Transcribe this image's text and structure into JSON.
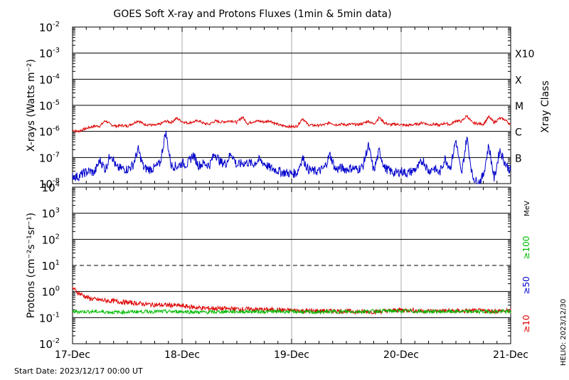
{
  "title": "GOES Soft X-ray and Protons Fluxes   (1min & 5min data)",
  "start_date_label": "Start Date: 2023/12/17 00:00 UT",
  "helio_stamp": "HELIO: 2023/12/30",
  "colors": {
    "red": "#dd0000",
    "blue": "#0000cc",
    "green": "#00bb00",
    "grid": "#000000",
    "vgrid": "#aaaaaa"
  },
  "chart_data": [
    {
      "type": "line",
      "panel": "xray",
      "ylabel": "X-rays (Watts m⁻²)",
      "y_scale": "log",
      "ylim": [
        1e-08,
        0.01
      ],
      "y_ticks": [
        {
          "value": 0.01,
          "base": "10",
          "exp": "-2"
        },
        {
          "value": 0.001,
          "base": "10",
          "exp": "-3"
        },
        {
          "value": 0.0001,
          "base": "10",
          "exp": "-4"
        },
        {
          "value": 1e-05,
          "base": "10",
          "exp": "-5"
        },
        {
          "value": 1e-06,
          "base": "10",
          "exp": "-6"
        },
        {
          "value": 1e-07,
          "base": "10",
          "exp": "-7"
        },
        {
          "value": 1e-08,
          "base": "10",
          "exp": "-8"
        }
      ],
      "right_axis_label": "Xray Class",
      "classes": [
        {
          "label": "X10",
          "value": 0.001
        },
        {
          "label": "X",
          "value": 0.0001
        },
        {
          "label": "M",
          "value": 1e-05
        },
        {
          "label": "C",
          "value": 1e-06
        },
        {
          "label": "B",
          "value": 1e-07
        }
      ],
      "x_ticks": [
        "17-Dec",
        "18-Dec",
        "19-Dec",
        "20-Dec",
        "21-Dec"
      ],
      "x_range_days": [
        0,
        4
      ],
      "series": [
        {
          "color": "#dd0000",
          "x": [
            0.0,
            0.05,
            0.1,
            0.15,
            0.2,
            0.25,
            0.3,
            0.35,
            0.4,
            0.45,
            0.5,
            0.55,
            0.6,
            0.65,
            0.7,
            0.75,
            0.8,
            0.85,
            0.9,
            0.95,
            1.0,
            1.05,
            1.1,
            1.15,
            1.2,
            1.25,
            1.3,
            1.35,
            1.4,
            1.45,
            1.5,
            1.55,
            1.6,
            1.65,
            1.7,
            1.75,
            1.8,
            1.85,
            1.9,
            1.95,
            2.0,
            2.05,
            2.1,
            2.15,
            2.2,
            2.25,
            2.3,
            2.35,
            2.4,
            2.45,
            2.5,
            2.55,
            2.6,
            2.65,
            2.7,
            2.75,
            2.8,
            2.85,
            2.9,
            2.95,
            3.0,
            3.05,
            3.1,
            3.15,
            3.2,
            3.25,
            3.3,
            3.35,
            3.4,
            3.45,
            3.5,
            3.55,
            3.6,
            3.65,
            3.7,
            3.75,
            3.8,
            3.85,
            3.9,
            3.95,
            4.0
          ],
          "y": [
            1.1e-06,
            1e-06,
            1.2e-06,
            1.4e-06,
            1.6e-06,
            1.6e-06,
            2.6e-06,
            1.8e-06,
            1.6e-06,
            1.7e-06,
            1.6e-06,
            2e-06,
            2.6e-06,
            1.9e-06,
            1.8e-06,
            1.7e-06,
            1.9e-06,
            2.5e-06,
            2.2e-06,
            3.2e-06,
            2.4e-06,
            2.1e-06,
            2.3e-06,
            2.6e-06,
            2e-06,
            1.9e-06,
            2.5e-06,
            2.3e-06,
            2.4e-06,
            2.6e-06,
            2.2e-06,
            3.6e-06,
            2e-06,
            2.4e-06,
            2.5e-06,
            2.3e-06,
            2.6e-06,
            2e-06,
            1.7e-06,
            1.6e-06,
            1.5e-06,
            1.6e-06,
            3.2e-06,
            1.8e-06,
            1.7e-06,
            1.7e-06,
            1.8e-06,
            2.2e-06,
            1.8e-06,
            1.9e-06,
            1.8e-06,
            1.9e-06,
            1.8e-06,
            2e-06,
            2.5e-06,
            1.9e-06,
            3.4e-06,
            2.1e-06,
            1.8e-06,
            1.9e-06,
            1.8e-06,
            1.7e-06,
            1.8e-06,
            1.9e-06,
            2.2e-06,
            1.8e-06,
            1.9e-06,
            1.7e-06,
            2.1e-06,
            1.8e-06,
            2.6e-06,
            2.4e-06,
            4e-06,
            2.1e-06,
            2e-06,
            1.9e-06,
            3.6e-06,
            2.2e-06,
            3.2e-06,
            2.8e-06,
            1.8e-06
          ]
        },
        {
          "color": "#0000cc",
          "x": [
            0.0,
            0.05,
            0.1,
            0.15,
            0.2,
            0.25,
            0.3,
            0.35,
            0.4,
            0.45,
            0.5,
            0.55,
            0.6,
            0.65,
            0.7,
            0.75,
            0.8,
            0.85,
            0.9,
            0.95,
            1.0,
            1.05,
            1.1,
            1.15,
            1.2,
            1.25,
            1.3,
            1.35,
            1.4,
            1.45,
            1.5,
            1.55,
            1.6,
            1.65,
            1.7,
            1.75,
            1.8,
            1.85,
            1.9,
            1.95,
            2.0,
            2.05,
            2.1,
            2.15,
            2.2,
            2.25,
            2.3,
            2.35,
            2.4,
            2.45,
            2.5,
            2.55,
            2.6,
            2.65,
            2.7,
            2.75,
            2.8,
            2.85,
            2.9,
            2.95,
            3.0,
            3.05,
            3.1,
            3.15,
            3.2,
            3.25,
            3.3,
            3.35,
            3.4,
            3.45,
            3.5,
            3.55,
            3.6,
            3.65,
            3.7,
            3.75,
            3.8,
            3.85,
            3.9,
            3.95,
            4.0
          ],
          "y": [
            2e-08,
            1.8e-08,
            2.5e-08,
            3e-08,
            2.6e-08,
            8e-08,
            3.5e-08,
            1.5e-07,
            4e-08,
            3.8e-08,
            3.5e-08,
            5e-08,
            2e-07,
            4e-08,
            3.5e-08,
            4e-08,
            6e-08,
            1e-06,
            5e-08,
            4.5e-08,
            6e-08,
            5.5e-08,
            1.3e-07,
            5e-08,
            6e-08,
            5e-08,
            1.5e-07,
            6.5e-08,
            6e-08,
            1.5e-07,
            5e-08,
            6e-08,
            6.5e-08,
            5.5e-08,
            8e-08,
            6e-08,
            4e-08,
            3.5e-08,
            2.8e-08,
            2.6e-08,
            2.4e-08,
            2.6e-08,
            1e-07,
            3.5e-08,
            3e-08,
            3e-08,
            4e-08,
            1.3e-07,
            3.5e-08,
            4e-08,
            3.5e-08,
            4e-08,
            3.5e-08,
            4.5e-08,
            3e-07,
            3e-08,
            1.8e-07,
            4e-08,
            3e-08,
            2.5e-08,
            3e-08,
            2.5e-08,
            3e-08,
            4e-08,
            8e-08,
            3e-08,
            4e-08,
            2.5e-08,
            9e-08,
            4e-08,
            5e-07,
            2e-08,
            6e-07,
            2e-08,
            1e-08,
            2e-08,
            3e-07,
            1.5e-08,
            2e-07,
            6e-08,
            3e-08
          ]
        }
      ]
    },
    {
      "type": "line",
      "panel": "protons",
      "ylabel": "Protons (cm⁻²s⁻¹sr⁻¹)",
      "y_scale": "log",
      "ylim": [
        0.01,
        10000
      ],
      "y_ticks": [
        {
          "value": 10000,
          "base": "10",
          "exp": "4"
        },
        {
          "value": 1000,
          "base": "10",
          "exp": "3"
        },
        {
          "value": 100,
          "base": "10",
          "exp": "2"
        },
        {
          "value": 10,
          "base": "10",
          "exp": "1"
        },
        {
          "value": 1,
          "base": "10",
          "exp": "0"
        },
        {
          "value": 0.1,
          "base": "10",
          "exp": "-1"
        },
        {
          "value": 0.01,
          "base": "10",
          "exp": "-2"
        }
      ],
      "threshold_dashed": 10,
      "unit_label": "MeV",
      "energy_labels": [
        {
          "label": "≥100",
          "color": "#00bb00"
        },
        {
          "label": "≥50",
          "color": "#0000cc"
        },
        {
          "label": "≥10",
          "color": "#dd0000"
        }
      ],
      "x_ticks": [
        "17-Dec",
        "18-Dec",
        "19-Dec",
        "20-Dec",
        "21-Dec"
      ],
      "x_range_days": [
        0,
        4
      ],
      "series": [
        {
          "color": "#dd0000",
          "x": [
            0.0,
            0.05,
            0.1,
            0.15,
            0.2,
            0.3,
            0.4,
            0.5,
            0.6,
            0.7,
            0.8,
            0.9,
            1.0,
            1.1,
            1.2,
            1.4,
            1.6,
            1.8,
            2.0,
            2.2,
            2.4,
            2.6,
            2.8,
            3.0,
            3.2,
            3.4,
            3.6,
            3.8,
            4.0
          ],
          "y": [
            1.4,
            0.9,
            0.7,
            0.55,
            0.5,
            0.45,
            0.42,
            0.38,
            0.35,
            0.32,
            0.3,
            0.3,
            0.28,
            0.25,
            0.23,
            0.22,
            0.21,
            0.2,
            0.19,
            0.18,
            0.18,
            0.17,
            0.17,
            0.2,
            0.18,
            0.18,
            0.18,
            0.18,
            0.18
          ]
        },
        {
          "color": "#00bb00",
          "x": [
            0.0,
            0.2,
            0.4,
            0.6,
            0.8,
            1.0,
            1.2,
            1.4,
            1.6,
            1.8,
            2.0,
            2.2,
            2.4,
            2.6,
            2.8,
            3.0,
            3.2,
            3.4,
            3.6,
            3.8,
            4.0
          ],
          "y": [
            0.17,
            0.17,
            0.16,
            0.17,
            0.17,
            0.17,
            0.16,
            0.17,
            0.17,
            0.17,
            0.17,
            0.16,
            0.17,
            0.17,
            0.18,
            0.18,
            0.17,
            0.17,
            0.17,
            0.17,
            0.17
          ]
        }
      ]
    }
  ]
}
